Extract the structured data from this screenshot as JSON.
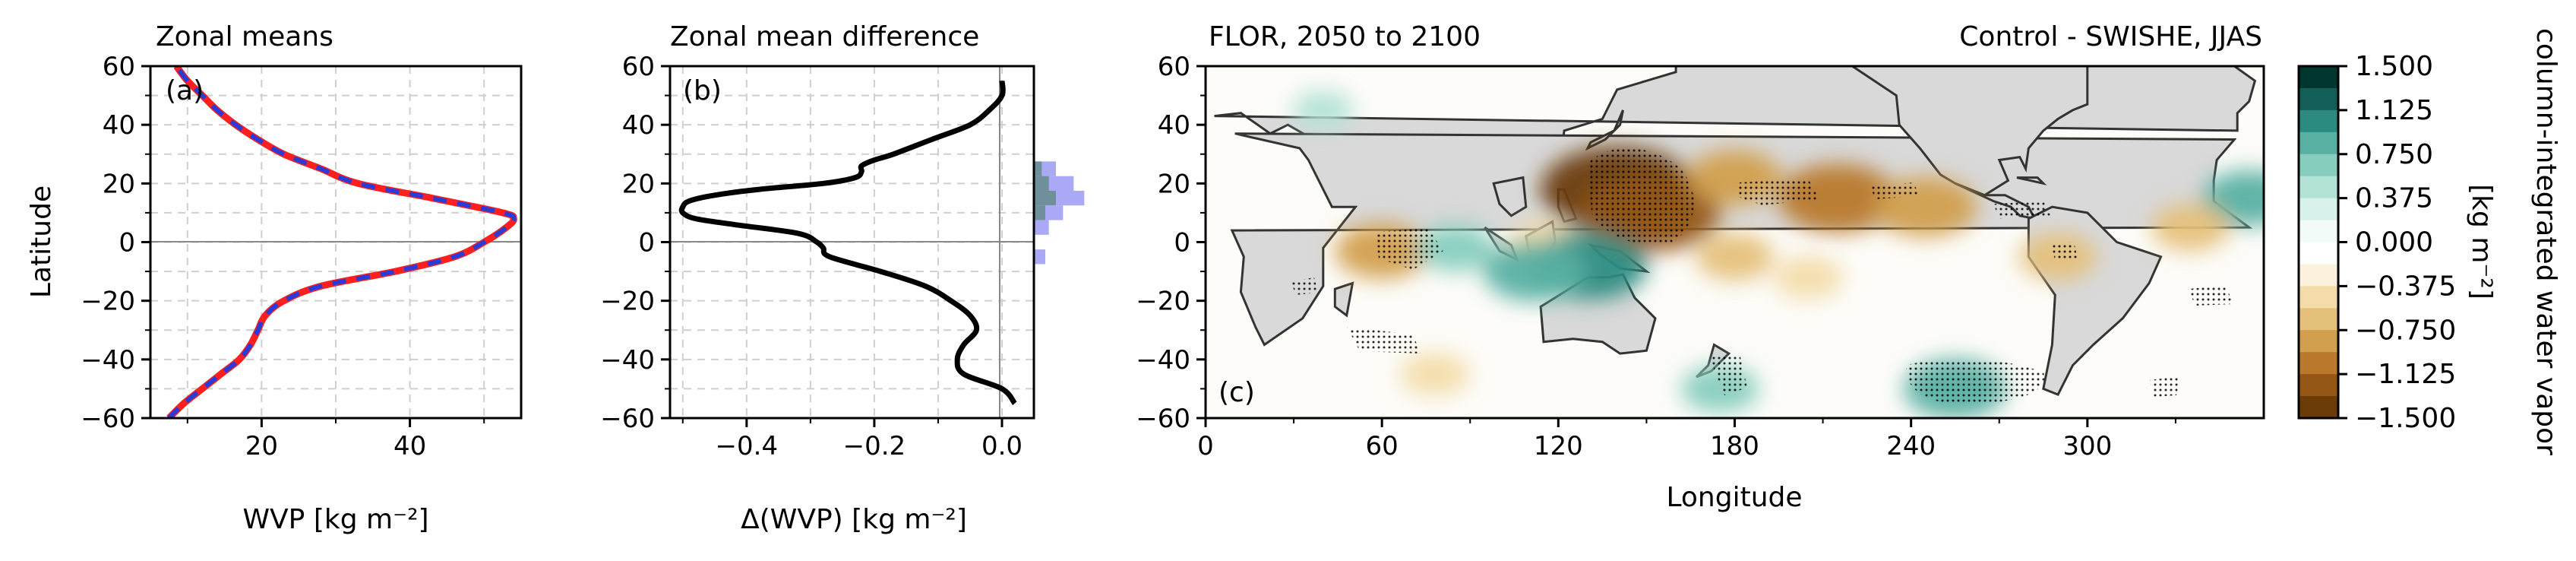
{
  "colors": {
    "control_line": "#ff1f1f",
    "swishe_line": "#2b3bd6",
    "diff_line": "#000000",
    "land": "#d9d9d9",
    "coast": "#333333",
    "hist_bars": "#a9a9f5",
    "hist_overlap": "#6f8f9a"
  },
  "colorbar": {
    "label": "column-integrated water vapor",
    "unit_label": "[kg m⁻²]",
    "ticks": [
      "1.500",
      "1.125",
      "0.750",
      "0.375",
      "0.000",
      "−0.375",
      "−0.750",
      "−1.125",
      "−1.500"
    ],
    "levels_top_to_bottom": [
      "#01362f",
      "#135f57",
      "#2b8b80",
      "#58b0a3",
      "#86cdbe",
      "#b2e1d5",
      "#d9f1eb",
      "#f2fbf8",
      "#ffffff",
      "#fbf1dc",
      "#f3dcaa",
      "#e5c07a",
      "#d29f4e",
      "#b8792b",
      "#955716",
      "#6b3b08"
    ]
  },
  "chart_data": [
    {
      "type": "line",
      "panel": "(a)",
      "title": "Zonal means",
      "xlabel": "WVP [kg m⁻²]",
      "ylabel": "Latitude",
      "xlim": [
        5,
        55
      ],
      "ylim": [
        -60,
        60
      ],
      "xticks": [
        "20",
        "40"
      ],
      "yticks": [
        "60",
        "40",
        "20",
        "0",
        "−20",
        "−40",
        "−60"
      ],
      "grid": true,
      "series": [
        {
          "style": "solid-red",
          "lat": [
            -60,
            -55,
            -50,
            -45,
            -40,
            -35,
            -30,
            -25,
            -20,
            -15,
            -10,
            -5,
            0,
            5,
            8,
            10,
            15,
            20,
            25,
            30,
            35,
            40,
            45,
            50,
            55,
            60
          ],
          "values": [
            7.5,
            9.5,
            12,
            14.5,
            17,
            18.5,
            19.5,
            20.5,
            23,
            28,
            38,
            46,
            50,
            53,
            54,
            52.5,
            43,
            33,
            28,
            23,
            19.5,
            16.5,
            14,
            12,
            10,
            8.5
          ]
        },
        {
          "style": "dashed-blue",
          "lat": [
            -60,
            -55,
            -50,
            -45,
            -40,
            -35,
            -30,
            -25,
            -20,
            -15,
            -10,
            -5,
            0,
            5,
            8,
            10,
            15,
            20,
            25,
            30,
            35,
            40,
            45,
            50,
            55,
            60
          ],
          "values": [
            7.5,
            9.5,
            12,
            14.5,
            17,
            18.5,
            19.5,
            20.5,
            23,
            28,
            38,
            46,
            50,
            53,
            54,
            52.5,
            43,
            33,
            28,
            23,
            19.5,
            16.5,
            14,
            12,
            10,
            8.5
          ]
        }
      ]
    },
    {
      "type": "line",
      "panel": "(b)",
      "title": "Zonal mean difference",
      "xlabel": "Δ(WVP) [kg m⁻²]",
      "xlim": [
        -0.52,
        0.05
      ],
      "ylim": [
        -60,
        60
      ],
      "xticks": [
        "−0.4",
        "−0.2",
        "0.0"
      ],
      "yticks": [
        "60",
        "40",
        "20",
        "0",
        "−20",
        "−40",
        "−60"
      ],
      "grid": true,
      "series": [
        {
          "lat": [
            -55,
            -50,
            -45,
            -40,
            -35,
            -30,
            -25,
            -20,
            -15,
            -10,
            -5,
            -2,
            0,
            3,
            6,
            8,
            10,
            12,
            14,
            16,
            18,
            20,
            22,
            24,
            26,
            28,
            30,
            35,
            40,
            45,
            50,
            55
          ],
          "values": [
            0.02,
            0.0,
            -0.06,
            -0.07,
            -0.06,
            -0.04,
            -0.05,
            -0.08,
            -0.12,
            -0.19,
            -0.27,
            -0.28,
            -0.29,
            -0.32,
            -0.42,
            -0.48,
            -0.5,
            -0.5,
            -0.49,
            -0.45,
            -0.38,
            -0.28,
            -0.23,
            -0.22,
            -0.22,
            -0.2,
            -0.17,
            -0.11,
            -0.05,
            -0.02,
            0.0,
            0.0
          ]
        }
      ],
      "histogram": {
        "bins_lat": [
          25,
          20,
          15,
          10,
          5,
          -5
        ],
        "values": [
          0.012,
          0.022,
          0.028,
          0.016,
          0.008,
          0.006
        ],
        "overlap_values": [
          0.004,
          0.008,
          0.012,
          0.006,
          0.0,
          0.0
        ]
      }
    },
    {
      "type": "heatmap",
      "panel": "(c)",
      "title_left": "FLOR, 2050 to 2100",
      "title_right": "Control - SWISHE, JJAS",
      "xlabel": "Longitude",
      "xlim": [
        0,
        360
      ],
      "ylim": [
        -60,
        60
      ],
      "xticks": [
        "0",
        "60",
        "120",
        "180",
        "240",
        "300"
      ],
      "yticks": [
        "60",
        "40",
        "20",
        "0",
        "−20",
        "−40",
        "−60"
      ],
      "features": [
        {
          "lon": 140,
          "lat": 18,
          "value": -1.5
        },
        {
          "lon": 152,
          "lat": 10,
          "value": -1.3
        },
        {
          "lon": 215,
          "lat": 15,
          "value": -1.1
        },
        {
          "lon": 245,
          "lat": 12,
          "value": -0.9
        },
        {
          "lon": 180,
          "lat": 22,
          "value": -0.8
        },
        {
          "lon": 60,
          "lat": -3,
          "value": -0.8
        },
        {
          "lon": 115,
          "lat": 0,
          "value": -0.5
        },
        {
          "lon": 180,
          "lat": -5,
          "value": -0.6
        },
        {
          "lon": 205,
          "lat": -12,
          "value": -0.5
        },
        {
          "lon": 130,
          "lat": -8,
          "value": 1.1
        },
        {
          "lon": 112,
          "lat": -10,
          "value": 0.9
        },
        {
          "lon": 85,
          "lat": -2,
          "value": 0.6
        },
        {
          "lon": 255,
          "lat": -50,
          "value": 0.9
        },
        {
          "lon": 175,
          "lat": -50,
          "value": 0.6
        },
        {
          "lon": 355,
          "lat": 15,
          "value": 0.8
        },
        {
          "lon": 40,
          "lat": 45,
          "value": 0.4
        },
        {
          "lon": 290,
          "lat": -5,
          "value": -0.6
        },
        {
          "lon": 335,
          "lat": 5,
          "value": -0.6
        },
        {
          "lon": 78,
          "lat": -45,
          "value": -0.5
        }
      ]
    }
  ]
}
